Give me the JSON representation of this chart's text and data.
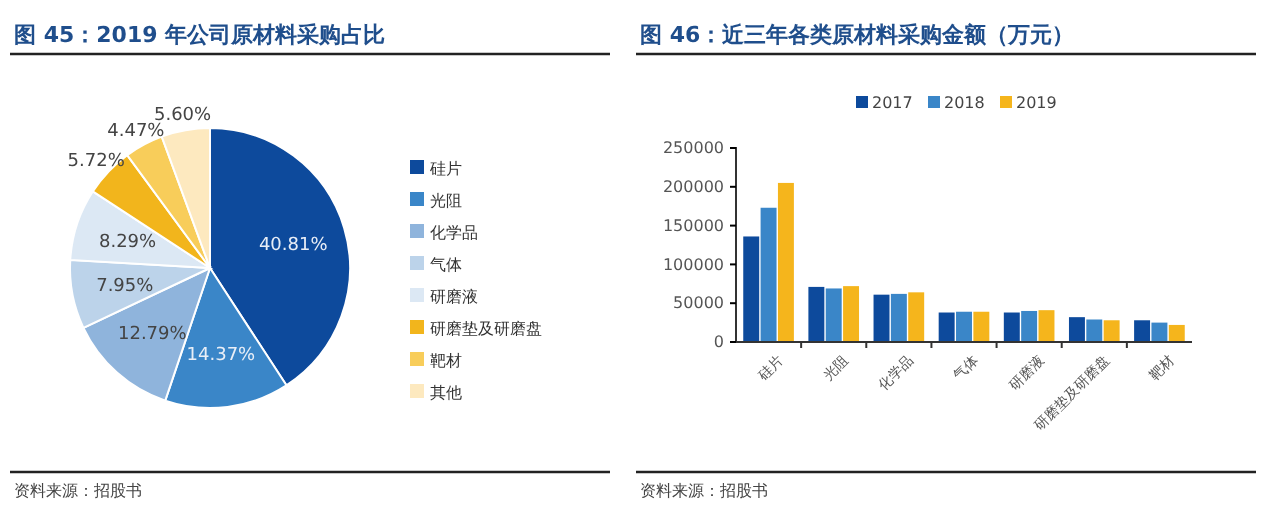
{
  "chart_data": [
    {
      "type": "pie",
      "title": "图 45：2019 年公司原材料采购占比",
      "categories": [
        "硅片",
        "光阻",
        "化学品",
        "气体",
        "研磨液",
        "研磨垫及研磨盘",
        "靶材",
        "其他"
      ],
      "values": [
        40.81,
        14.37,
        12.79,
        7.95,
        8.29,
        5.72,
        4.47,
        5.6
      ],
      "colors": [
        "#0d4a9c",
        "#3a86c8",
        "#8fb4dc",
        "#bcd3ea",
        "#dce8f4",
        "#f2b51c",
        "#f8cd5a",
        "#fde9bf"
      ],
      "value_labels": [
        "40.81%",
        "14.37%",
        "12.79%",
        "7.95%",
        "8.29%",
        "5.72%",
        "4.47%",
        "5.60%"
      ],
      "legend": "right",
      "annotations": [
        "资料来源：招股书"
      ]
    },
    {
      "type": "bar",
      "title": "图 46：近三年各类原材料采购金额（万元）",
      "categories": [
        "硅片",
        "光阻",
        "化学品",
        "气体",
        "研磨液",
        "研磨垫及研磨盘",
        "靶材"
      ],
      "series": [
        {
          "name": "2017",
          "color": "#0d4a9c",
          "values": [
            136000,
            71000,
            61000,
            38000,
            38000,
            32000,
            28000
          ]
        },
        {
          "name": "2018",
          "color": "#3a86c8",
          "values": [
            173000,
            69000,
            62000,
            39000,
            40000,
            29000,
            25000
          ]
        },
        {
          "name": "2019",
          "color": "#f5b51c",
          "values": [
            205000,
            72000,
            64000,
            39000,
            41000,
            28000,
            22000
          ]
        }
      ],
      "ylim": [
        0,
        250000
      ],
      "yticks": [
        0,
        50000,
        100000,
        150000,
        200000,
        250000
      ],
      "legend": "top",
      "annotations": [
        "资料来源：招股书"
      ]
    }
  ]
}
